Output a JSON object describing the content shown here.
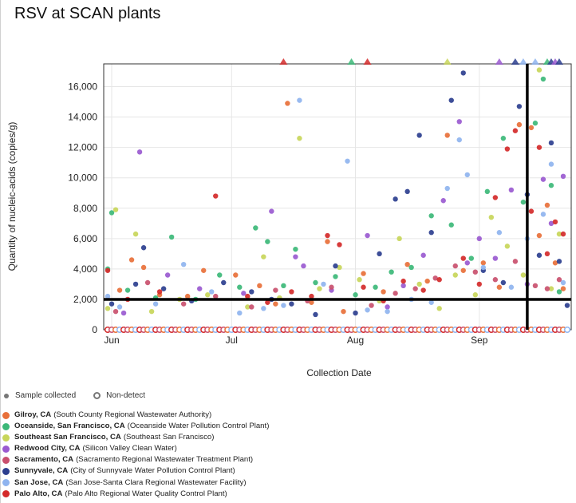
{
  "page": {
    "title": "RSV at SCAN plants"
  },
  "legend": {
    "sample_label": "Sample collected",
    "nondetect_label": "Non-detect"
  },
  "plants": [
    {
      "name": "Gilroy, CA",
      "facility": "(South County Regional Wastewater Authority)",
      "color": "#e8703a"
    },
    {
      "name": "Oceanside, San Francisco, CA",
      "facility": "(Oceanside Water Pollution Control Plant)",
      "color": "#3cb878"
    },
    {
      "name": "Southeast San Francisco, CA",
      "facility": "(Southeast San Francisco)",
      "color": "#c8d65a"
    },
    {
      "name": "Redwood City, CA",
      "facility": "(Silicon Valley Clean Water)",
      "color": "#9a5ad0"
    },
    {
      "name": "Sacramento, CA",
      "facility": "(Sacramento Regional Wastewater Treatment Plant)",
      "color": "#c9506e"
    },
    {
      "name": "Sunnyvale, CA",
      "facility": "(City of Sunnyvale Water Pollution Control Plant)",
      "color": "#2d3f8f"
    },
    {
      "name": "San Jose, CA",
      "facility": "(San Jose-Santa Clara Regional Wastewater Facility)",
      "color": "#8fb4ef"
    },
    {
      "name": "Palo Alto, CA",
      "facility": "(Palo Alto Regional Water Quality Control Plant)",
      "color": "#d42a2a"
    }
  ],
  "chart_data": {
    "type": "scatter",
    "title": "RSV at SCAN plants",
    "xlabel": "Collection Date",
    "ylabel": "Quantity of nucleic-acids (copies/g)",
    "x_ticks": [
      "Jun",
      "Jul",
      "Aug",
      "Sep"
    ],
    "x_tick_dates": [
      "2023-06-01",
      "2023-07-01",
      "2023-08-01",
      "2023-09-01"
    ],
    "xlim": [
      "2023-05-30",
      "2023-09-24"
    ],
    "y_ticks": [
      "0",
      "2,000",
      "4,000",
      "6,000",
      "8,000",
      "10,000",
      "12,000",
      "14,000",
      "16,000"
    ],
    "ylim": [
      0,
      17500
    ],
    "grid": true,
    "reference_lines": {
      "y": 2000,
      "x": "2023-09-13"
    },
    "series": [
      {
        "name": "Gilroy, CA",
        "color": "#e8703a",
        "points": [
          [
            "2023-06-03",
            2600
          ],
          [
            "2023-06-06",
            4600
          ],
          [
            "2023-06-09",
            4100
          ],
          [
            "2023-06-13",
            2300
          ],
          [
            "2023-06-20",
            2200
          ],
          [
            "2023-06-24",
            3900
          ],
          [
            "2023-07-02",
            3600
          ],
          [
            "2023-07-08",
            2900
          ],
          [
            "2023-07-12",
            1700
          ],
          [
            "2023-07-15",
            14900
          ],
          [
            "2023-07-21",
            1800
          ],
          [
            "2023-07-25",
            5800
          ],
          [
            "2023-07-29",
            1200
          ],
          [
            "2023-08-03",
            3700
          ],
          [
            "2023-08-08",
            2500
          ],
          [
            "2023-08-14",
            4300
          ],
          [
            "2023-08-19",
            3200
          ],
          [
            "2023-08-24",
            12800
          ],
          [
            "2023-08-28",
            3900
          ],
          [
            "2023-09-02",
            4400
          ],
          [
            "2023-09-06",
            2800
          ],
          [
            "2023-09-11",
            13500
          ],
          [
            "2023-09-14",
            13300
          ],
          [
            "2023-09-16",
            6200
          ],
          [
            "2023-09-18",
            8200
          ],
          [
            "2023-09-20",
            4400
          ],
          [
            "2023-09-22",
            2700
          ]
        ]
      },
      {
        "name": "Oceanside, San Francisco, CA",
        "color": "#3cb878",
        "points": [
          [
            "2023-05-31",
            4000
          ],
          [
            "2023-06-01",
            7700
          ],
          [
            "2023-06-05",
            2600
          ],
          [
            "2023-06-12",
            2100
          ],
          [
            "2023-06-16",
            6100
          ],
          [
            "2023-06-22",
            2000
          ],
          [
            "2023-06-28",
            3600
          ],
          [
            "2023-07-03",
            2800
          ],
          [
            "2023-07-07",
            6700
          ],
          [
            "2023-07-10",
            5800
          ],
          [
            "2023-07-14",
            2900
          ],
          [
            "2023-07-17",
            5300
          ],
          [
            "2023-07-22",
            3100
          ],
          [
            "2023-07-27",
            3500
          ],
          [
            "2023-08-01",
            2300
          ],
          [
            "2023-08-06",
            2800
          ],
          [
            "2023-08-10",
            3800
          ],
          [
            "2023-08-15",
            4100
          ],
          [
            "2023-08-20",
            7500
          ],
          [
            "2023-08-25",
            6900
          ],
          [
            "2023-08-30",
            4700
          ],
          [
            "2023-09-03",
            9100
          ],
          [
            "2023-09-07",
            12600
          ],
          [
            "2023-09-12",
            8400
          ],
          [
            "2023-09-15",
            13600
          ],
          [
            "2023-09-17",
            16500
          ],
          [
            "2023-09-19",
            9500
          ],
          [
            "2023-09-21",
            2500
          ]
        ]
      },
      {
        "name": "Southeast San Francisco, CA",
        "color": "#c8d65a",
        "points": [
          [
            "2023-05-31",
            1400
          ],
          [
            "2023-06-02",
            7900
          ],
          [
            "2023-06-07",
            6300
          ],
          [
            "2023-06-11",
            1200
          ],
          [
            "2023-06-18",
            2000
          ],
          [
            "2023-06-25",
            2300
          ],
          [
            "2023-07-05",
            1500
          ],
          [
            "2023-07-09",
            4800
          ],
          [
            "2023-07-13",
            2100
          ],
          [
            "2023-07-18",
            12600
          ],
          [
            "2023-07-23",
            2700
          ],
          [
            "2023-07-28",
            4100
          ],
          [
            "2023-08-02",
            3300
          ],
          [
            "2023-08-07",
            1900
          ],
          [
            "2023-08-12",
            6000
          ],
          [
            "2023-08-17",
            3000
          ],
          [
            "2023-08-22",
            1400
          ],
          [
            "2023-08-26",
            3600
          ],
          [
            "2023-08-31",
            2300
          ],
          [
            "2023-09-04",
            7400
          ],
          [
            "2023-09-08",
            5500
          ],
          [
            "2023-09-12",
            3600
          ],
          [
            "2023-09-16",
            17100
          ],
          [
            "2023-09-19",
            2700
          ],
          [
            "2023-09-21",
            6300
          ]
        ]
      },
      {
        "name": "Redwood City, CA",
        "color": "#9a5ad0",
        "points": [
          [
            "2023-06-04",
            1100
          ],
          [
            "2023-06-08",
            11700
          ],
          [
            "2023-06-15",
            3600
          ],
          [
            "2023-06-23",
            2700
          ],
          [
            "2023-07-04",
            2400
          ],
          [
            "2023-07-11",
            7800
          ],
          [
            "2023-07-17",
            4800
          ],
          [
            "2023-07-19",
            4200
          ],
          [
            "2023-07-26",
            2600
          ],
          [
            "2023-08-04",
            6200
          ],
          [
            "2023-08-09",
            1500
          ],
          [
            "2023-08-13",
            2900
          ],
          [
            "2023-08-18",
            4900
          ],
          [
            "2023-08-23",
            8500
          ],
          [
            "2023-08-27",
            13700
          ],
          [
            "2023-08-29",
            4400
          ],
          [
            "2023-09-01",
            6000
          ],
          [
            "2023-09-05",
            4700
          ],
          [
            "2023-09-09",
            9200
          ],
          [
            "2023-09-13",
            3000
          ],
          [
            "2023-09-17",
            9900
          ],
          [
            "2023-09-19",
            7000
          ],
          [
            "2023-09-22",
            10100
          ]
        ]
      },
      {
        "name": "Sacramento, CA",
        "color": "#c9506e",
        "points": [
          [
            "2023-06-02",
            1200
          ],
          [
            "2023-06-10",
            3100
          ],
          [
            "2023-06-19",
            1700
          ],
          [
            "2023-06-27",
            2200
          ],
          [
            "2023-07-06",
            1500
          ],
          [
            "2023-07-12",
            2600
          ],
          [
            "2023-07-20",
            1900
          ],
          [
            "2023-07-26",
            2800
          ],
          [
            "2023-08-05",
            1600
          ],
          [
            "2023-08-11",
            2400
          ],
          [
            "2023-08-16",
            2700
          ],
          [
            "2023-08-21",
            3400
          ],
          [
            "2023-08-26",
            4200
          ],
          [
            "2023-08-31",
            3800
          ],
          [
            "2023-09-05",
            3300
          ],
          [
            "2023-09-10",
            4500
          ],
          [
            "2023-09-15",
            2900
          ],
          [
            "2023-09-18",
            2700
          ],
          [
            "2023-09-21",
            3300
          ]
        ]
      },
      {
        "name": "Sunnyvale, CA",
        "color": "#2d3f8f",
        "points": [
          [
            "2023-06-01",
            1700
          ],
          [
            "2023-06-07",
            3000
          ],
          [
            "2023-06-09",
            5400
          ],
          [
            "2023-06-14",
            2700
          ],
          [
            "2023-06-21",
            1900
          ],
          [
            "2023-06-29",
            3100
          ],
          [
            "2023-07-06",
            2500
          ],
          [
            "2023-07-11",
            2000
          ],
          [
            "2023-07-16",
            1700
          ],
          [
            "2023-07-22",
            1000
          ],
          [
            "2023-07-27",
            4200
          ],
          [
            "2023-08-01",
            1100
          ],
          [
            "2023-08-07",
            5000
          ],
          [
            "2023-08-11",
            8600
          ],
          [
            "2023-08-14",
            9100
          ],
          [
            "2023-08-17",
            12800
          ],
          [
            "2023-08-20",
            6400
          ],
          [
            "2023-08-25",
            15100
          ],
          [
            "2023-08-28",
            16900
          ],
          [
            "2023-09-02",
            3900
          ],
          [
            "2023-09-07",
            3100
          ],
          [
            "2023-09-11",
            14700
          ],
          [
            "2023-09-13",
            8900
          ],
          [
            "2023-09-16",
            4900
          ],
          [
            "2023-09-19",
            12300
          ],
          [
            "2023-09-21",
            4500
          ],
          [
            "2023-09-23",
            1600
          ]
        ]
      },
      {
        "name": "San Jose, CA",
        "color": "#8fb4ef",
        "points": [
          [
            "2023-05-31",
            2200
          ],
          [
            "2023-06-03",
            1500
          ],
          [
            "2023-06-12",
            1700
          ],
          [
            "2023-06-19",
            4300
          ],
          [
            "2023-06-26",
            2500
          ],
          [
            "2023-07-03",
            1100
          ],
          [
            "2023-07-09",
            1400
          ],
          [
            "2023-07-14",
            1600
          ],
          [
            "2023-07-18",
            15100
          ],
          [
            "2023-07-24",
            3000
          ],
          [
            "2023-07-30",
            11100
          ],
          [
            "2023-08-04",
            1300
          ],
          [
            "2023-08-09",
            1200
          ],
          [
            "2023-08-15",
            2000
          ],
          [
            "2023-08-20",
            1800
          ],
          [
            "2023-08-24",
            9300
          ],
          [
            "2023-08-27",
            12500
          ],
          [
            "2023-08-29",
            10200
          ],
          [
            "2023-09-02",
            4100
          ],
          [
            "2023-09-06",
            6400
          ],
          [
            "2023-09-09",
            2800
          ],
          [
            "2023-09-13",
            6000
          ],
          [
            "2023-09-17",
            7600
          ],
          [
            "2023-09-19",
            10900
          ],
          [
            "2023-09-22",
            3100
          ]
        ]
      },
      {
        "name": "Palo Alto, CA",
        "color": "#d42a2a",
        "points": [
          [
            "2023-05-31",
            3900
          ],
          [
            "2023-06-05",
            2000
          ],
          [
            "2023-06-13",
            2500
          ],
          [
            "2023-06-27",
            8800
          ],
          [
            "2023-07-05",
            2200
          ],
          [
            "2023-07-10",
            1800
          ],
          [
            "2023-07-16",
            2500
          ],
          [
            "2023-07-21",
            2200
          ],
          [
            "2023-07-25",
            6200
          ],
          [
            "2023-07-28",
            5600
          ],
          [
            "2023-08-03",
            2800
          ],
          [
            "2023-08-08",
            1900
          ],
          [
            "2023-08-13",
            3200
          ],
          [
            "2023-08-18",
            2600
          ],
          [
            "2023-08-22",
            3300
          ],
          [
            "2023-08-28",
            4700
          ],
          [
            "2023-09-01",
            3000
          ],
          [
            "2023-09-05",
            8700
          ],
          [
            "2023-09-08",
            11900
          ],
          [
            "2023-09-10",
            13100
          ],
          [
            "2023-09-14",
            7800
          ],
          [
            "2023-09-16",
            12000
          ],
          [
            "2023-09-18",
            5000
          ],
          [
            "2023-09-20",
            7100
          ],
          [
            "2023-09-22",
            6300
          ]
        ]
      }
    ],
    "clipped_above_max": [
      {
        "date": "2023-07-14",
        "color": "#d42a2a"
      },
      {
        "date": "2023-07-31",
        "color": "#3cb878"
      },
      {
        "date": "2023-08-04",
        "color": "#d42a2a"
      },
      {
        "date": "2023-08-24",
        "color": "#c8d65a"
      },
      {
        "date": "2023-09-06",
        "color": "#9a5ad0"
      },
      {
        "date": "2023-09-10",
        "color": "#2d3f8f"
      },
      {
        "date": "2023-09-12",
        "color": "#8fb4ef"
      },
      {
        "date": "2023-09-15",
        "color": "#8fb4ef"
      },
      {
        "date": "2023-09-18",
        "color": "#3cb878"
      },
      {
        "date": "2023-09-19",
        "color": "#2d3f8f"
      },
      {
        "date": "2023-09-20",
        "color": "#9a5ad0"
      },
      {
        "date": "2023-09-21",
        "color": "#2d3f8f"
      }
    ],
    "non_detect": {
      "value": 0,
      "dates_from": "2023-05-31",
      "dates_to": "2023-09-23",
      "colors": [
        "#d42a2a",
        "#c9506e",
        "#e8703a",
        "#8fb4ef"
      ]
    }
  }
}
